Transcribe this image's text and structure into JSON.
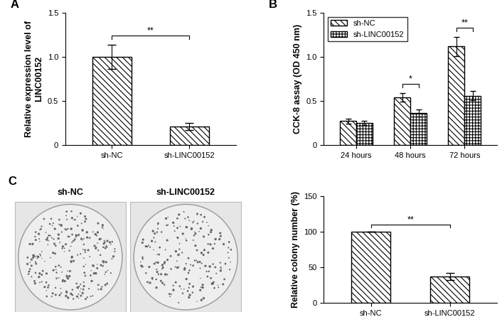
{
  "chart_data": [
    {
      "type": "bar",
      "title": "A",
      "categories": [
        "sh-NC",
        "sh-LINC00152"
      ],
      "values": [
        1.0,
        0.21
      ],
      "errors": [
        0.14,
        0.04
      ],
      "y_label": "Relative expression level of LINC00152",
      "ylim": [
        0,
        1.5
      ],
      "yticks": [
        0,
        0.5,
        1.0,
        1.5
      ],
      "annotations": [
        {
          "text": "**",
          "categories": [
            "sh-NC",
            "sh-LINC00152"
          ]
        }
      ]
    },
    {
      "type": "bar",
      "title": "B",
      "categories": [
        "24 hours",
        "48 hours",
        "72 hours"
      ],
      "series": [
        {
          "name": "sh-NC",
          "values": [
            0.27,
            0.54,
            1.12
          ],
          "errors": [
            0.03,
            0.05,
            0.11
          ]
        },
        {
          "name": "sh-LINC00152",
          "values": [
            0.25,
            0.36,
            0.56
          ],
          "errors": [
            0.025,
            0.04,
            0.05
          ]
        }
      ],
      "y_label": "CCK-8 assay (OD 450 nm)",
      "ylim": [
        0,
        1.5
      ],
      "yticks": [
        0,
        0.5,
        1.0,
        1.5
      ],
      "legend": "upper left",
      "annotations": [
        {
          "text": "*",
          "category": "48 hours"
        },
        {
          "text": "**",
          "category": "72 hours"
        }
      ]
    },
    {
      "type": "image",
      "title": "C",
      "labels": [
        "sh-NC",
        "sh-LINC00152"
      ]
    },
    {
      "type": "bar",
      "categories": [
        "sh-NC",
        "sh-LINC00152"
      ],
      "values": [
        100,
        37
      ],
      "errors": [
        0,
        5
      ],
      "y_label": "Relative colony number (%)",
      "ylim": [
        0,
        150
      ],
      "yticks": [
        0,
        50,
        100,
        150
      ],
      "annotations": [
        {
          "text": "**",
          "categories": [
            "sh-NC",
            "sh-LINC00152"
          ]
        }
      ]
    }
  ]
}
